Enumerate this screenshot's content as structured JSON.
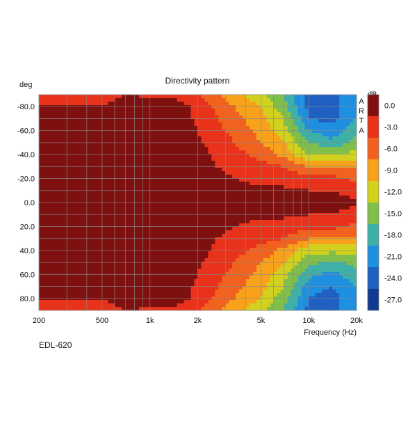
{
  "chart_data": {
    "type": "heatmap",
    "title": "Directivity pattern",
    "ylabel": "deg",
    "xlabel": "Frequency (Hz)",
    "x_scale": "log",
    "xlim": [
      200,
      20000
    ],
    "ylim": [
      -90,
      90
    ],
    "x_ticks": [
      {
        "value": 200,
        "label": "200"
      },
      {
        "value": 500,
        "label": "500"
      },
      {
        "value": 1000,
        "label": "1k"
      },
      {
        "value": 2000,
        "label": "2k"
      },
      {
        "value": 5000,
        "label": "5k"
      },
      {
        "value": 10000,
        "label": "10k"
      },
      {
        "value": 20000,
        "label": "20k"
      }
    ],
    "y_ticks": [
      {
        "value": -80,
        "label": "-80.0"
      },
      {
        "value": -60,
        "label": "-60.0"
      },
      {
        "value": -40,
        "label": "-40.0"
      },
      {
        "value": -20,
        "label": "-20.0"
      },
      {
        "value": 0,
        "label": "0.0"
      },
      {
        "value": 20,
        "label": "20.0"
      },
      {
        "value": 40,
        "label": "40.0"
      },
      {
        "value": 60,
        "label": "60.0"
      },
      {
        "value": 80,
        "label": "80.0"
      }
    ],
    "grid": true,
    "colorbar": {
      "label": "dB",
      "ticks": [
        "0.0",
        "-3.0",
        "-6.0",
        "-9.0",
        "-12.0",
        "-15.0",
        "-18.0",
        "-21.0",
        "-24.0",
        "-27.0"
      ],
      "colors": [
        "#7f1010",
        "#e8321a",
        "#f0621e",
        "#f7a21a",
        "#d2d21e",
        "#7fbf4a",
        "#3fb0a8",
        "#1f8fe0",
        "#1f60c0",
        "#0f3a90"
      ]
    },
    "watermark": "ARTA",
    "frequency_hz": [
      200,
      300,
      500,
      700,
      1000,
      1500,
      2000,
      3000,
      5000,
      7000,
      10000,
      14000,
      20000
    ],
    "angle_deg": [
      -90,
      -80,
      -70,
      -60,
      -50,
      -40,
      -30,
      -20,
      -10,
      0,
      10,
      20,
      30,
      40,
      50,
      60,
      70,
      80,
      90
    ],
    "level_db": [
      [
        -4,
        -4,
        -4,
        -3,
        -3.5,
        -4,
        -6,
        -10,
        -14,
        -18,
        -25,
        -25,
        -22
      ],
      [
        -3,
        -3,
        -3,
        -2,
        -1,
        -1.5,
        -4,
        -8,
        -12,
        -17,
        -25,
        -25,
        -22
      ],
      [
        -2.5,
        -2.5,
        -2.5,
        -2,
        -0.5,
        -1.5,
        -3.5,
        -7,
        -11,
        -15,
        -24,
        -25,
        -21
      ],
      [
        -2,
        -2,
        -2,
        -1.5,
        -0.5,
        -1.5,
        -3,
        -6,
        -10,
        -14,
        -21,
        -23,
        -19
      ],
      [
        -2.5,
        -2.5,
        -0.5,
        -1.5,
        -0.5,
        -1.5,
        -2.5,
        -5,
        -9,
        -12,
        -18,
        -20,
        -17
      ],
      [
        -2,
        -2,
        -0.5,
        -1.5,
        -0.5,
        -2,
        -2,
        -4,
        -7,
        -10,
        -15,
        -15,
        -14
      ],
      [
        -2,
        -2,
        -1.5,
        -1.5,
        -0.5,
        -2,
        -2,
        -3.5,
        -5,
        -6,
        -9,
        -9,
        -9
      ],
      [
        -1.5,
        -1.5,
        -2,
        -1.5,
        -0.5,
        -1.5,
        -1.5,
        -2.5,
        -4,
        -4,
        -5,
        -5,
        -7
      ],
      [
        -0.5,
        -0.5,
        -2,
        -1.5,
        -0.5,
        -1,
        -1.5,
        -2,
        -2.5,
        -2.5,
        -3,
        -3,
        -4
      ],
      [
        -0.5,
        -0.5,
        -2,
        -1.5,
        -0.5,
        -1,
        -1.5,
        -0.5,
        -2,
        -2,
        -2,
        -2,
        -2.5
      ],
      [
        -0.5,
        -0.5,
        -2,
        -1.5,
        -0.5,
        -1,
        -1.5,
        -2,
        -2.5,
        -2.5,
        -3,
        -3,
        -4
      ],
      [
        -1.5,
        -1.5,
        -2,
        -1.5,
        -0.5,
        -1.5,
        -1.5,
        -2.5,
        -4,
        -4,
        -5,
        -5,
        -7
      ],
      [
        -2,
        -2,
        -1.5,
        -1.5,
        -0.5,
        -2,
        -2,
        -3.5,
        -5,
        -6,
        -9,
        -9,
        -9
      ],
      [
        -2,
        -2,
        -0.5,
        -1.5,
        -0.5,
        -2,
        -2,
        -4,
        -7,
        -10,
        -14,
        -14,
        -14
      ],
      [
        -2.5,
        -2.5,
        -0.5,
        -1.5,
        -0.5,
        -1.5,
        -2.5,
        -5,
        -9,
        -12,
        -17,
        -19,
        -17
      ],
      [
        -2,
        -2,
        -2,
        -1.5,
        -0.5,
        -1.5,
        -3,
        -6,
        -10,
        -14,
        -20,
        -22,
        -19
      ],
      [
        -2.5,
        -2.5,
        -2.5,
        -2,
        -0.5,
        -1.5,
        -3.5,
        -7,
        -11,
        -15,
        -23,
        -24,
        -21
      ],
      [
        -3,
        -3,
        -3,
        -2,
        -1,
        -1.5,
        -4,
        -8,
        -12,
        -17,
        -24,
        -25,
        -22
      ],
      [
        -4,
        -4,
        -4,
        -3,
        -3.5,
        -4,
        -6,
        -10,
        -14,
        -18,
        -25,
        -25,
        -22
      ]
    ]
  },
  "model_label": "EDL-620"
}
